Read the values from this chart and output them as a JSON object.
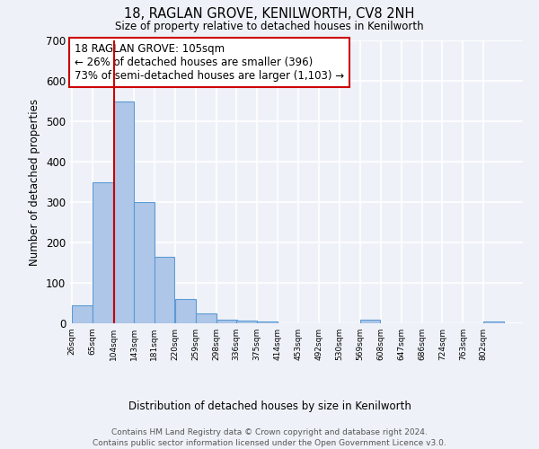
{
  "title": "18, RAGLAN GROVE, KENILWORTH, CV8 2NH",
  "subtitle": "Size of property relative to detached houses in Kenilworth",
  "xlabel": "Distribution of detached houses by size in Kenilworth",
  "ylabel": "Number of detached properties",
  "bar_color": "#aec6e8",
  "bar_edge_color": "#5b9bd5",
  "categories": [
    "26sqm",
    "65sqm",
    "104sqm",
    "143sqm",
    "181sqm",
    "220sqm",
    "259sqm",
    "298sqm",
    "336sqm",
    "375sqm",
    "414sqm",
    "453sqm",
    "492sqm",
    "530sqm",
    "569sqm",
    "608sqm",
    "647sqm",
    "686sqm",
    "724sqm",
    "763sqm",
    "802sqm"
  ],
  "bin_edges": [
    26,
    65,
    104,
    143,
    181,
    220,
    259,
    298,
    336,
    375,
    414,
    453,
    492,
    530,
    569,
    608,
    647,
    686,
    724,
    763,
    802,
    841
  ],
  "values": [
    45,
    350,
    550,
    300,
    165,
    60,
    25,
    10,
    7,
    5,
    0,
    0,
    0,
    0,
    10,
    0,
    0,
    0,
    0,
    0,
    5
  ],
  "ylim": [
    0,
    700
  ],
  "yticks": [
    0,
    100,
    200,
    300,
    400,
    500,
    600,
    700
  ],
  "property_line_x": 105,
  "property_line_color": "#cc0000",
  "annotation_text": "18 RAGLAN GROVE: 105sqm\n← 26% of detached houses are smaller (396)\n73% of semi-detached houses are larger (1,103) →",
  "annotation_box_color": "#ffffff",
  "annotation_border_color": "#cc0000",
  "background_color": "#eef2f8",
  "grid_color": "#ffffff",
  "footer_line1": "Contains HM Land Registry data © Crown copyright and database right 2024.",
  "footer_line2": "Contains public sector information licensed under the Open Government Licence v3.0."
}
